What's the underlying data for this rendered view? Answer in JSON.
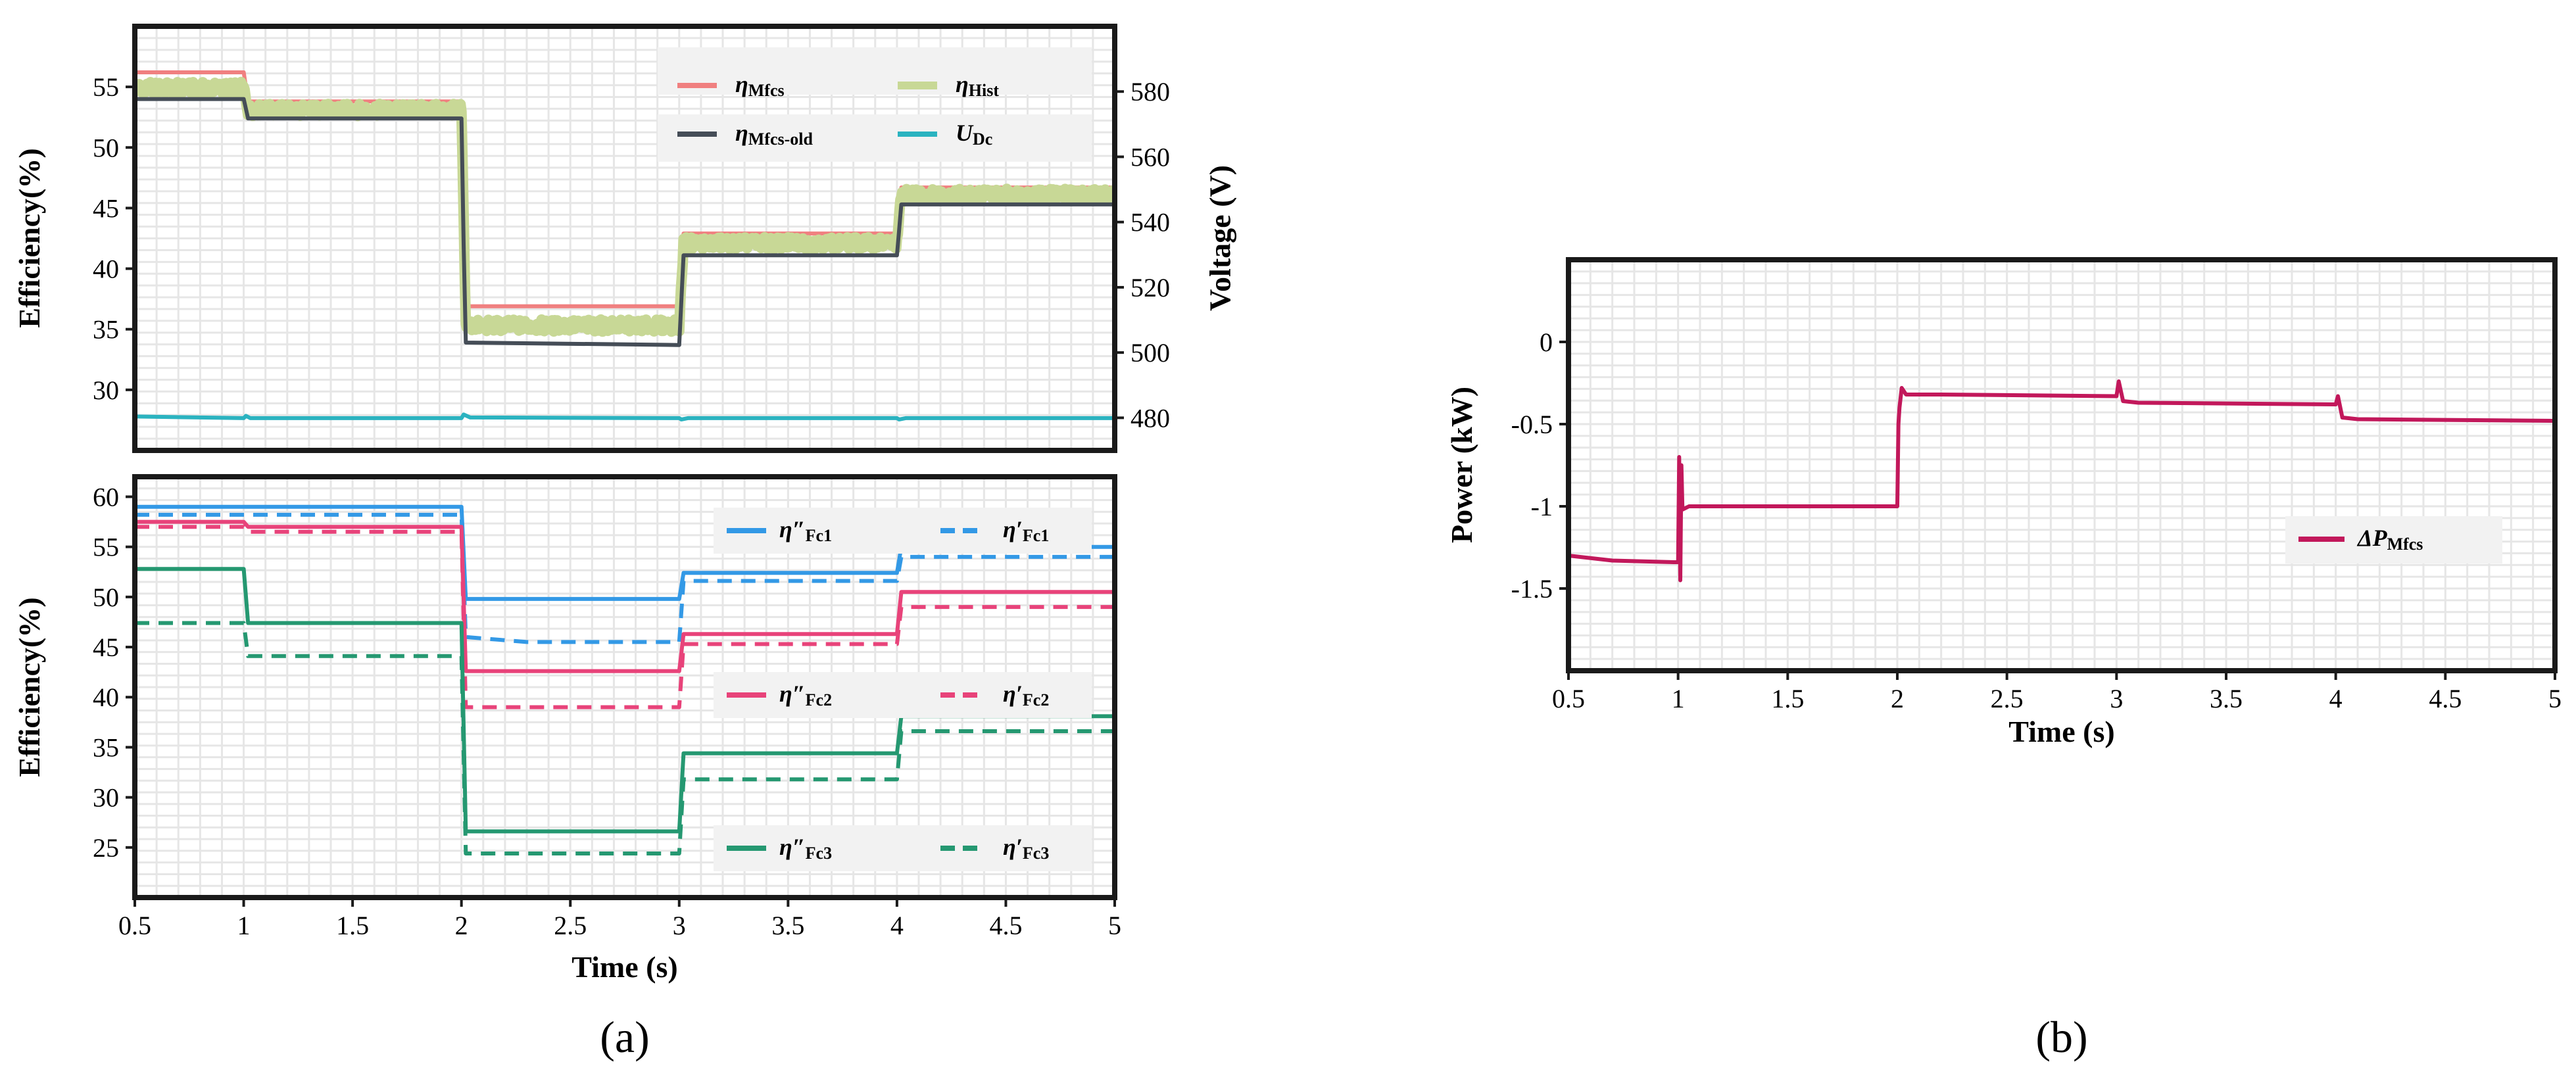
{
  "chart_data": [
    {
      "id": "a_top",
      "type": "line",
      "xlabel": "",
      "ylabel": "Efficiency(%)",
      "y2label": "Voltage (V)",
      "xlim": [
        0.5,
        5
      ],
      "ylim": [
        25,
        60
      ],
      "y2lim": [
        470,
        600
      ],
      "xticks": [
        "0.5",
        "1",
        "1.5",
        "2",
        "2.5",
        "3",
        "3.5",
        "4",
        "4.5",
        "5"
      ],
      "yticks": [
        30,
        35,
        40,
        45,
        50,
        55
      ],
      "y2ticks": [
        480,
        500,
        520,
        540,
        560,
        580
      ],
      "legend": {
        "position": "top-right",
        "columns": 2
      },
      "series": [
        {
          "name": "η",
          "sub": "Mfcs",
          "color": "#f08080",
          "width": 6,
          "dash": "",
          "axis": "left",
          "points": [
            [
              0.5,
              56.2
            ],
            [
              1.0,
              56.2
            ],
            [
              1.02,
              53.8
            ],
            [
              2.0,
              53.8
            ],
            [
              2.02,
              36.9
            ],
            [
              3.0,
              36.9
            ],
            [
              3.02,
              42.9
            ],
            [
              4.0,
              42.9
            ],
            [
              4.02,
              46.7
            ],
            [
              5.0,
              46.7
            ]
          ]
        },
        {
          "name": "η",
          "sub": "Hist",
          "color": "#c8d896",
          "width": 16,
          "dash": "",
          "axis": "left",
          "noise": 0.5,
          "points": [
            [
              0.5,
              54.9
            ],
            [
              1.0,
              54.9
            ],
            [
              1.02,
              53.1
            ],
            [
              2.0,
              53.1
            ],
            [
              2.02,
              35.3
            ],
            [
              3.0,
              35.3
            ],
            [
              3.02,
              42.1
            ],
            [
              4.0,
              42.1
            ],
            [
              4.02,
              46.1
            ],
            [
              5.0,
              46.1
            ]
          ]
        },
        {
          "name": "η",
          "sub": "Mfcs-old",
          "color": "#454d57",
          "width": 6,
          "dash": "",
          "axis": "left",
          "points": [
            [
              0.5,
              54.0
            ],
            [
              1.0,
              54.0
            ],
            [
              1.02,
              52.4
            ],
            [
              2.0,
              52.4
            ],
            [
              2.01,
              42.0
            ],
            [
              2.02,
              33.9
            ],
            [
              3.0,
              33.7
            ],
            [
              3.02,
              41.1
            ],
            [
              4.0,
              41.1
            ],
            [
              4.02,
              45.3
            ],
            [
              5.0,
              45.3
            ]
          ]
        },
        {
          "name": "U",
          "sub": "Dc",
          "color": "#2bb3c0",
          "width": 6,
          "dash": "",
          "axis": "right",
          "points": [
            [
              0.5,
              480.4
            ],
            [
              1.0,
              479.9
            ],
            [
              1.01,
              480.6
            ],
            [
              1.03,
              479.9
            ],
            [
              2.0,
              479.9
            ],
            [
              2.01,
              481.0
            ],
            [
              2.04,
              480.1
            ],
            [
              3.0,
              479.9
            ],
            [
              3.01,
              479.5
            ],
            [
              3.04,
              479.9
            ],
            [
              4.0,
              479.9
            ],
            [
              4.01,
              479.5
            ],
            [
              4.04,
              479.9
            ],
            [
              5.0,
              479.9
            ]
          ]
        }
      ]
    },
    {
      "id": "a_bottom",
      "type": "line",
      "xlabel": "Time (s)",
      "ylabel": "Efficiency(%)",
      "xlim": [
        0.5,
        5
      ],
      "ylim": [
        20,
        62
      ],
      "xticks": [
        "0.5",
        "1",
        "1.5",
        "2",
        "2.5",
        "3",
        "3.5",
        "4",
        "4.5",
        "5"
      ],
      "yticks": [
        25,
        30,
        35,
        40,
        45,
        50,
        55,
        60
      ],
      "legend": {
        "position": "right",
        "columns": 2
      },
      "series": [
        {
          "name": "η″",
          "sub": "Fc1",
          "color": "#3399e6",
          "width": 6,
          "dash": "",
          "points": [
            [
              0.5,
              59.0
            ],
            [
              2.0,
              59.0
            ],
            [
              2.02,
              49.8
            ],
            [
              3.0,
              49.8
            ],
            [
              3.02,
              52.4
            ],
            [
              4.0,
              52.4
            ],
            [
              4.02,
              55.0
            ],
            [
              5.0,
              55.0
            ]
          ]
        },
        {
          "name": "η′",
          "sub": "Fc1",
          "color": "#3399e6",
          "width": 6,
          "dash": "22 14",
          "points": [
            [
              0.5,
              58.2
            ],
            [
              2.0,
              58.2
            ],
            [
              2.02,
              46.0
            ],
            [
              2.3,
              45.5
            ],
            [
              3.0,
              45.5
            ],
            [
              3.02,
              51.6
            ],
            [
              4.0,
              51.6
            ],
            [
              4.02,
              54.0
            ],
            [
              5.0,
              54.0
            ]
          ]
        },
        {
          "name": "η″",
          "sub": "Fc2",
          "color": "#e8437a",
          "width": 6,
          "dash": "",
          "points": [
            [
              0.5,
              57.5
            ],
            [
              1.0,
              57.5
            ],
            [
              1.02,
              57.0
            ],
            [
              2.0,
              57.0
            ],
            [
              2.02,
              42.6
            ],
            [
              3.0,
              42.6
            ],
            [
              3.02,
              46.3
            ],
            [
              4.0,
              46.3
            ],
            [
              4.02,
              50.5
            ],
            [
              5.0,
              50.5
            ]
          ]
        },
        {
          "name": "η′",
          "sub": "Fc2",
          "color": "#e8437a",
          "width": 6,
          "dash": "22 14",
          "points": [
            [
              0.5,
              57.0
            ],
            [
              1.0,
              57.0
            ],
            [
              1.02,
              56.5
            ],
            [
              2.0,
              56.5
            ],
            [
              2.02,
              39.0
            ],
            [
              3.0,
              39.0
            ],
            [
              3.02,
              45.3
            ],
            [
              4.0,
              45.3
            ],
            [
              4.02,
              49.0
            ],
            [
              5.0,
              49.0
            ]
          ]
        },
        {
          "name": "η″",
          "sub": "Fc3",
          "color": "#259871",
          "width": 6,
          "dash": "",
          "points": [
            [
              0.5,
              52.8
            ],
            [
              1.0,
              52.8
            ],
            [
              1.02,
              47.4
            ],
            [
              2.0,
              47.4
            ],
            [
              2.02,
              26.6
            ],
            [
              3.0,
              26.6
            ],
            [
              3.02,
              34.4
            ],
            [
              4.0,
              34.4
            ],
            [
              4.02,
              38.1
            ],
            [
              5.0,
              38.1
            ]
          ]
        },
        {
          "name": "η′",
          "sub": "Fc3",
          "color": "#259871",
          "width": 6,
          "dash": "22 14",
          "points": [
            [
              0.5,
              47.4
            ],
            [
              1.0,
              47.4
            ],
            [
              1.02,
              44.1
            ],
            [
              2.0,
              44.1
            ],
            [
              2.02,
              24.4
            ],
            [
              3.0,
              24.4
            ],
            [
              3.02,
              31.8
            ],
            [
              4.0,
              31.8
            ],
            [
              4.02,
              36.6
            ],
            [
              5.0,
              36.6
            ]
          ]
        }
      ]
    },
    {
      "id": "b",
      "type": "line",
      "xlabel": "Time (s)",
      "ylabel": "Power (kW)",
      "xlim": [
        0.5,
        5
      ],
      "ylim": [
        -2.0,
        0.5
      ],
      "xticks": [
        "0.5",
        "1",
        "1.5",
        "2",
        "2.5",
        "3",
        "3.5",
        "4",
        "4.5",
        "5"
      ],
      "yticks": [
        "0",
        "-0.5",
        "-1",
        "-1.5"
      ],
      "ytick_values": [
        0,
        -0.5,
        -1,
        -1.5
      ],
      "legend": {
        "position": "right",
        "columns": 1
      },
      "series": [
        {
          "name": "ΔP",
          "sub": "Mfcs",
          "color": "#c2185b",
          "width": 6,
          "dash": "",
          "points": [
            [
              0.5,
              -1.3
            ],
            [
              0.7,
              -1.33
            ],
            [
              0.98,
              -1.34
            ],
            [
              1.0,
              -1.34
            ],
            [
              1.005,
              -0.7
            ],
            [
              1.01,
              -1.45
            ],
            [
              1.015,
              -0.75
            ],
            [
              1.02,
              -1.02
            ],
            [
              1.05,
              -1.0
            ],
            [
              2.0,
              -1.0
            ],
            [
              2.005,
              -0.5
            ],
            [
              2.01,
              -0.4
            ],
            [
              2.02,
              -0.28
            ],
            [
              2.04,
              -0.32
            ],
            [
              2.2,
              -0.32
            ],
            [
              3.0,
              -0.33
            ],
            [
              3.01,
              -0.24
            ],
            [
              3.03,
              -0.36
            ],
            [
              3.1,
              -0.37
            ],
            [
              4.0,
              -0.38
            ],
            [
              4.01,
              -0.33
            ],
            [
              4.03,
              -0.46
            ],
            [
              4.1,
              -0.47
            ],
            [
              5.0,
              -0.48
            ]
          ]
        }
      ]
    }
  ],
  "panel_labels": {
    "a": "(a)",
    "b": "(b)"
  }
}
